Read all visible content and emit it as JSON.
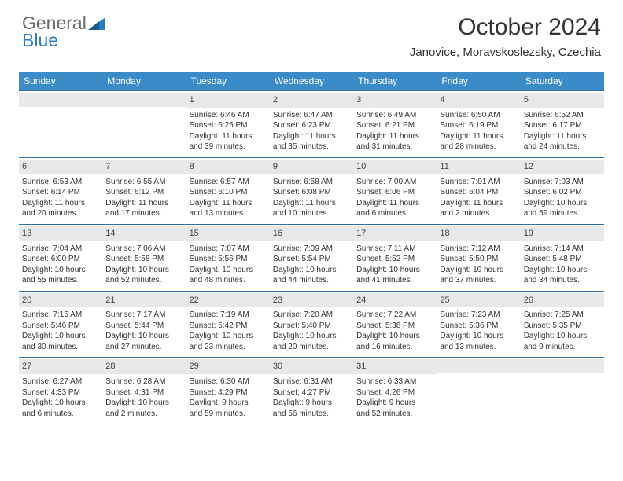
{
  "logo": {
    "first": "General",
    "second": "Blue"
  },
  "header": {
    "title": "October 2024",
    "location": "Janovice, Moravskoslezsky, Czechia"
  },
  "colors": {
    "header_bar": "#3b8bc9",
    "week_divider": "#2f6fa3",
    "daynum_bg": "#e7e8e9",
    "logo_gray": "#6a6a6a",
    "logo_blue": "#2b7bbf"
  },
  "weekdays": [
    "Sunday",
    "Monday",
    "Tuesday",
    "Wednesday",
    "Thursday",
    "Friday",
    "Saturday"
  ],
  "weeks": [
    [
      null,
      null,
      {
        "day": "1",
        "sunrise": "Sunrise: 6:46 AM",
        "sunset": "Sunset: 6:25 PM",
        "daylight1": "Daylight: 11 hours",
        "daylight2": "and 39 minutes."
      },
      {
        "day": "2",
        "sunrise": "Sunrise: 6:47 AM",
        "sunset": "Sunset: 6:23 PM",
        "daylight1": "Daylight: 11 hours",
        "daylight2": "and 35 minutes."
      },
      {
        "day": "3",
        "sunrise": "Sunrise: 6:49 AM",
        "sunset": "Sunset: 6:21 PM",
        "daylight1": "Daylight: 11 hours",
        "daylight2": "and 31 minutes."
      },
      {
        "day": "4",
        "sunrise": "Sunrise: 6:50 AM",
        "sunset": "Sunset: 6:19 PM",
        "daylight1": "Daylight: 11 hours",
        "daylight2": "and 28 minutes."
      },
      {
        "day": "5",
        "sunrise": "Sunrise: 6:52 AM",
        "sunset": "Sunset: 6:17 PM",
        "daylight1": "Daylight: 11 hours",
        "daylight2": "and 24 minutes."
      }
    ],
    [
      {
        "day": "6",
        "sunrise": "Sunrise: 6:53 AM",
        "sunset": "Sunset: 6:14 PM",
        "daylight1": "Daylight: 11 hours",
        "daylight2": "and 20 minutes."
      },
      {
        "day": "7",
        "sunrise": "Sunrise: 6:55 AM",
        "sunset": "Sunset: 6:12 PM",
        "daylight1": "Daylight: 11 hours",
        "daylight2": "and 17 minutes."
      },
      {
        "day": "8",
        "sunrise": "Sunrise: 6:57 AM",
        "sunset": "Sunset: 6:10 PM",
        "daylight1": "Daylight: 11 hours",
        "daylight2": "and 13 minutes."
      },
      {
        "day": "9",
        "sunrise": "Sunrise: 6:58 AM",
        "sunset": "Sunset: 6:08 PM",
        "daylight1": "Daylight: 11 hours",
        "daylight2": "and 10 minutes."
      },
      {
        "day": "10",
        "sunrise": "Sunrise: 7:00 AM",
        "sunset": "Sunset: 6:06 PM",
        "daylight1": "Daylight: 11 hours",
        "daylight2": "and 6 minutes."
      },
      {
        "day": "11",
        "sunrise": "Sunrise: 7:01 AM",
        "sunset": "Sunset: 6:04 PM",
        "daylight1": "Daylight: 11 hours",
        "daylight2": "and 2 minutes."
      },
      {
        "day": "12",
        "sunrise": "Sunrise: 7:03 AM",
        "sunset": "Sunset: 6:02 PM",
        "daylight1": "Daylight: 10 hours",
        "daylight2": "and 59 minutes."
      }
    ],
    [
      {
        "day": "13",
        "sunrise": "Sunrise: 7:04 AM",
        "sunset": "Sunset: 6:00 PM",
        "daylight1": "Daylight: 10 hours",
        "daylight2": "and 55 minutes."
      },
      {
        "day": "14",
        "sunrise": "Sunrise: 7:06 AM",
        "sunset": "Sunset: 5:58 PM",
        "daylight1": "Daylight: 10 hours",
        "daylight2": "and 52 minutes."
      },
      {
        "day": "15",
        "sunrise": "Sunrise: 7:07 AM",
        "sunset": "Sunset: 5:56 PM",
        "daylight1": "Daylight: 10 hours",
        "daylight2": "and 48 minutes."
      },
      {
        "day": "16",
        "sunrise": "Sunrise: 7:09 AM",
        "sunset": "Sunset: 5:54 PM",
        "daylight1": "Daylight: 10 hours",
        "daylight2": "and 44 minutes."
      },
      {
        "day": "17",
        "sunrise": "Sunrise: 7:11 AM",
        "sunset": "Sunset: 5:52 PM",
        "daylight1": "Daylight: 10 hours",
        "daylight2": "and 41 minutes."
      },
      {
        "day": "18",
        "sunrise": "Sunrise: 7:12 AM",
        "sunset": "Sunset: 5:50 PM",
        "daylight1": "Daylight: 10 hours",
        "daylight2": "and 37 minutes."
      },
      {
        "day": "19",
        "sunrise": "Sunrise: 7:14 AM",
        "sunset": "Sunset: 5:48 PM",
        "daylight1": "Daylight: 10 hours",
        "daylight2": "and 34 minutes."
      }
    ],
    [
      {
        "day": "20",
        "sunrise": "Sunrise: 7:15 AM",
        "sunset": "Sunset: 5:46 PM",
        "daylight1": "Daylight: 10 hours",
        "daylight2": "and 30 minutes."
      },
      {
        "day": "21",
        "sunrise": "Sunrise: 7:17 AM",
        "sunset": "Sunset: 5:44 PM",
        "daylight1": "Daylight: 10 hours",
        "daylight2": "and 27 minutes."
      },
      {
        "day": "22",
        "sunrise": "Sunrise: 7:19 AM",
        "sunset": "Sunset: 5:42 PM",
        "daylight1": "Daylight: 10 hours",
        "daylight2": "and 23 minutes."
      },
      {
        "day": "23",
        "sunrise": "Sunrise: 7:20 AM",
        "sunset": "Sunset: 5:40 PM",
        "daylight1": "Daylight: 10 hours",
        "daylight2": "and 20 minutes."
      },
      {
        "day": "24",
        "sunrise": "Sunrise: 7:22 AM",
        "sunset": "Sunset: 5:38 PM",
        "daylight1": "Daylight: 10 hours",
        "daylight2": "and 16 minutes."
      },
      {
        "day": "25",
        "sunrise": "Sunrise: 7:23 AM",
        "sunset": "Sunset: 5:36 PM",
        "daylight1": "Daylight: 10 hours",
        "daylight2": "and 13 minutes."
      },
      {
        "day": "26",
        "sunrise": "Sunrise: 7:25 AM",
        "sunset": "Sunset: 5:35 PM",
        "daylight1": "Daylight: 10 hours",
        "daylight2": "and 9 minutes."
      }
    ],
    [
      {
        "day": "27",
        "sunrise": "Sunrise: 6:27 AM",
        "sunset": "Sunset: 4:33 PM",
        "daylight1": "Daylight: 10 hours",
        "daylight2": "and 6 minutes."
      },
      {
        "day": "28",
        "sunrise": "Sunrise: 6:28 AM",
        "sunset": "Sunset: 4:31 PM",
        "daylight1": "Daylight: 10 hours",
        "daylight2": "and 2 minutes."
      },
      {
        "day": "29",
        "sunrise": "Sunrise: 6:30 AM",
        "sunset": "Sunset: 4:29 PM",
        "daylight1": "Daylight: 9 hours",
        "daylight2": "and 59 minutes."
      },
      {
        "day": "30",
        "sunrise": "Sunrise: 6:31 AM",
        "sunset": "Sunset: 4:27 PM",
        "daylight1": "Daylight: 9 hours",
        "daylight2": "and 56 minutes."
      },
      {
        "day": "31",
        "sunrise": "Sunrise: 6:33 AM",
        "sunset": "Sunset: 4:26 PM",
        "daylight1": "Daylight: 9 hours",
        "daylight2": "and 52 minutes."
      },
      null,
      null
    ]
  ]
}
